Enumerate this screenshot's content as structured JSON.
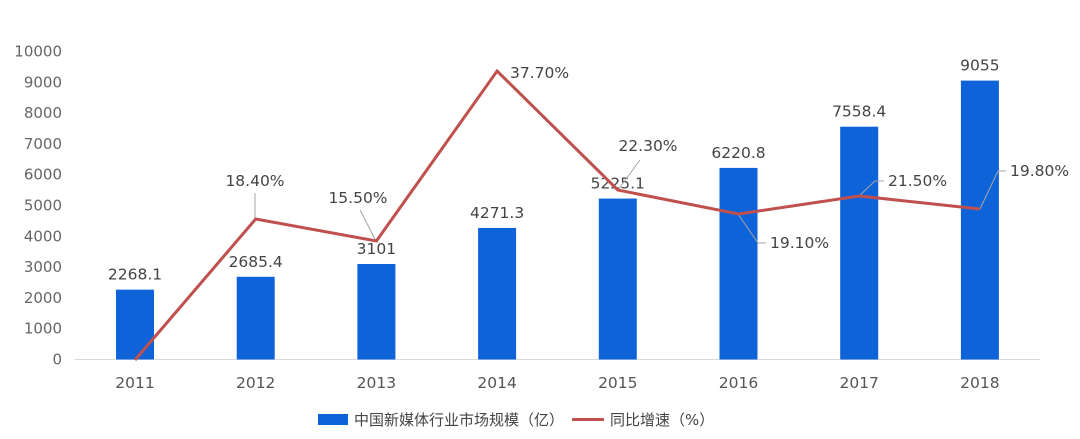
{
  "chart_data": {
    "type": "bar+line",
    "title": "",
    "xlabel": "",
    "ylabel": "",
    "ylim": [
      0,
      10000
    ],
    "yticks": [
      0,
      1000,
      2000,
      3000,
      4000,
      5000,
      6000,
      7000,
      8000,
      9000,
      10000
    ],
    "categories": [
      "2011",
      "2012",
      "2013",
      "2014",
      "2015",
      "2016",
      "2017",
      "2018"
    ],
    "series": [
      {
        "name": "中国新媒体行业市场规模（亿）",
        "type": "bar",
        "color": "#0e63d9",
        "values": [
          2268.1,
          2685.4,
          3101,
          4271.3,
          5225.1,
          6220.8,
          7558.4,
          9055
        ],
        "labels": [
          "2268.1",
          "2685.4",
          "3101",
          "4271.3",
          "5225.1",
          "6220.8",
          "7558.4",
          "9055"
        ]
      },
      {
        "name": "同比增速（%）",
        "type": "line",
        "axis": "secondary-hidden",
        "color": "#c0504d",
        "values": [
          null,
          18.4,
          15.5,
          37.7,
          22.3,
          19.1,
          21.5,
          19.8
        ],
        "labels": [
          "",
          "18.40%",
          "15.50%",
          "37.70%",
          "22.30%",
          "19.10%",
          "21.50%",
          "19.80%"
        ]
      }
    ],
    "grid": false,
    "legend_position": "bottom"
  },
  "legend": {
    "bar_label": "中国新媒体行业市场规模（亿）",
    "line_label": "同比增速（%）"
  }
}
